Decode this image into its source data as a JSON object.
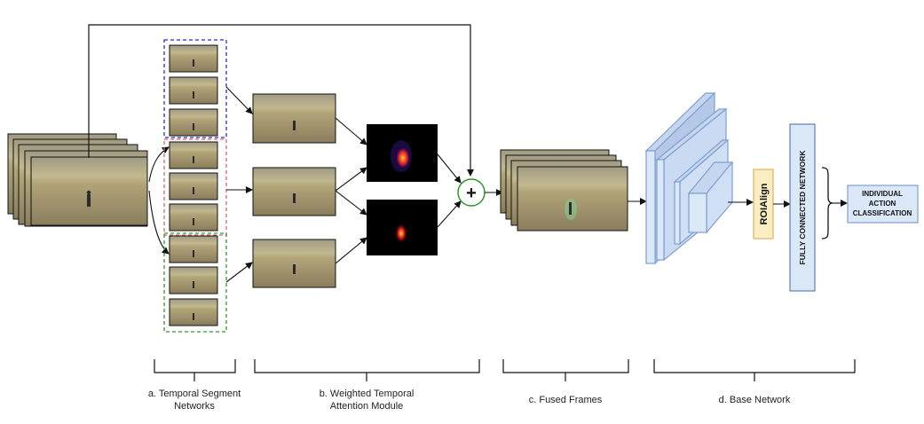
{
  "stages": {
    "a": {
      "line1": "a. Temporal Segment",
      "line2": "Networks"
    },
    "b": {
      "line1": "b. Weighted Temporal",
      "line2": "Attention Module"
    },
    "c": {
      "line1": "c. Fused Frames"
    },
    "d": {
      "line1": "d. Base Network"
    }
  },
  "boxes": {
    "roialign": "ROIAlign",
    "fully_connected": "FULLY CONNECTED NETWORK",
    "output": {
      "line1": "INDIVIDUAL",
      "line2": "ACTION",
      "line3": "CLASSIFICATION"
    }
  },
  "fusion_symbol": "+",
  "colors": {
    "segment_blue": "#2b2bd6",
    "segment_red": "#e0626e",
    "segment_green": "#2e9a2e",
    "fusion_circle": "#2a9a2a",
    "layer_fill": "#dbe8f8",
    "layer_stroke": "#7f9fd0",
    "roialign_fill": "#fbeec2",
    "roialign_stroke": "#d8b35e"
  }
}
